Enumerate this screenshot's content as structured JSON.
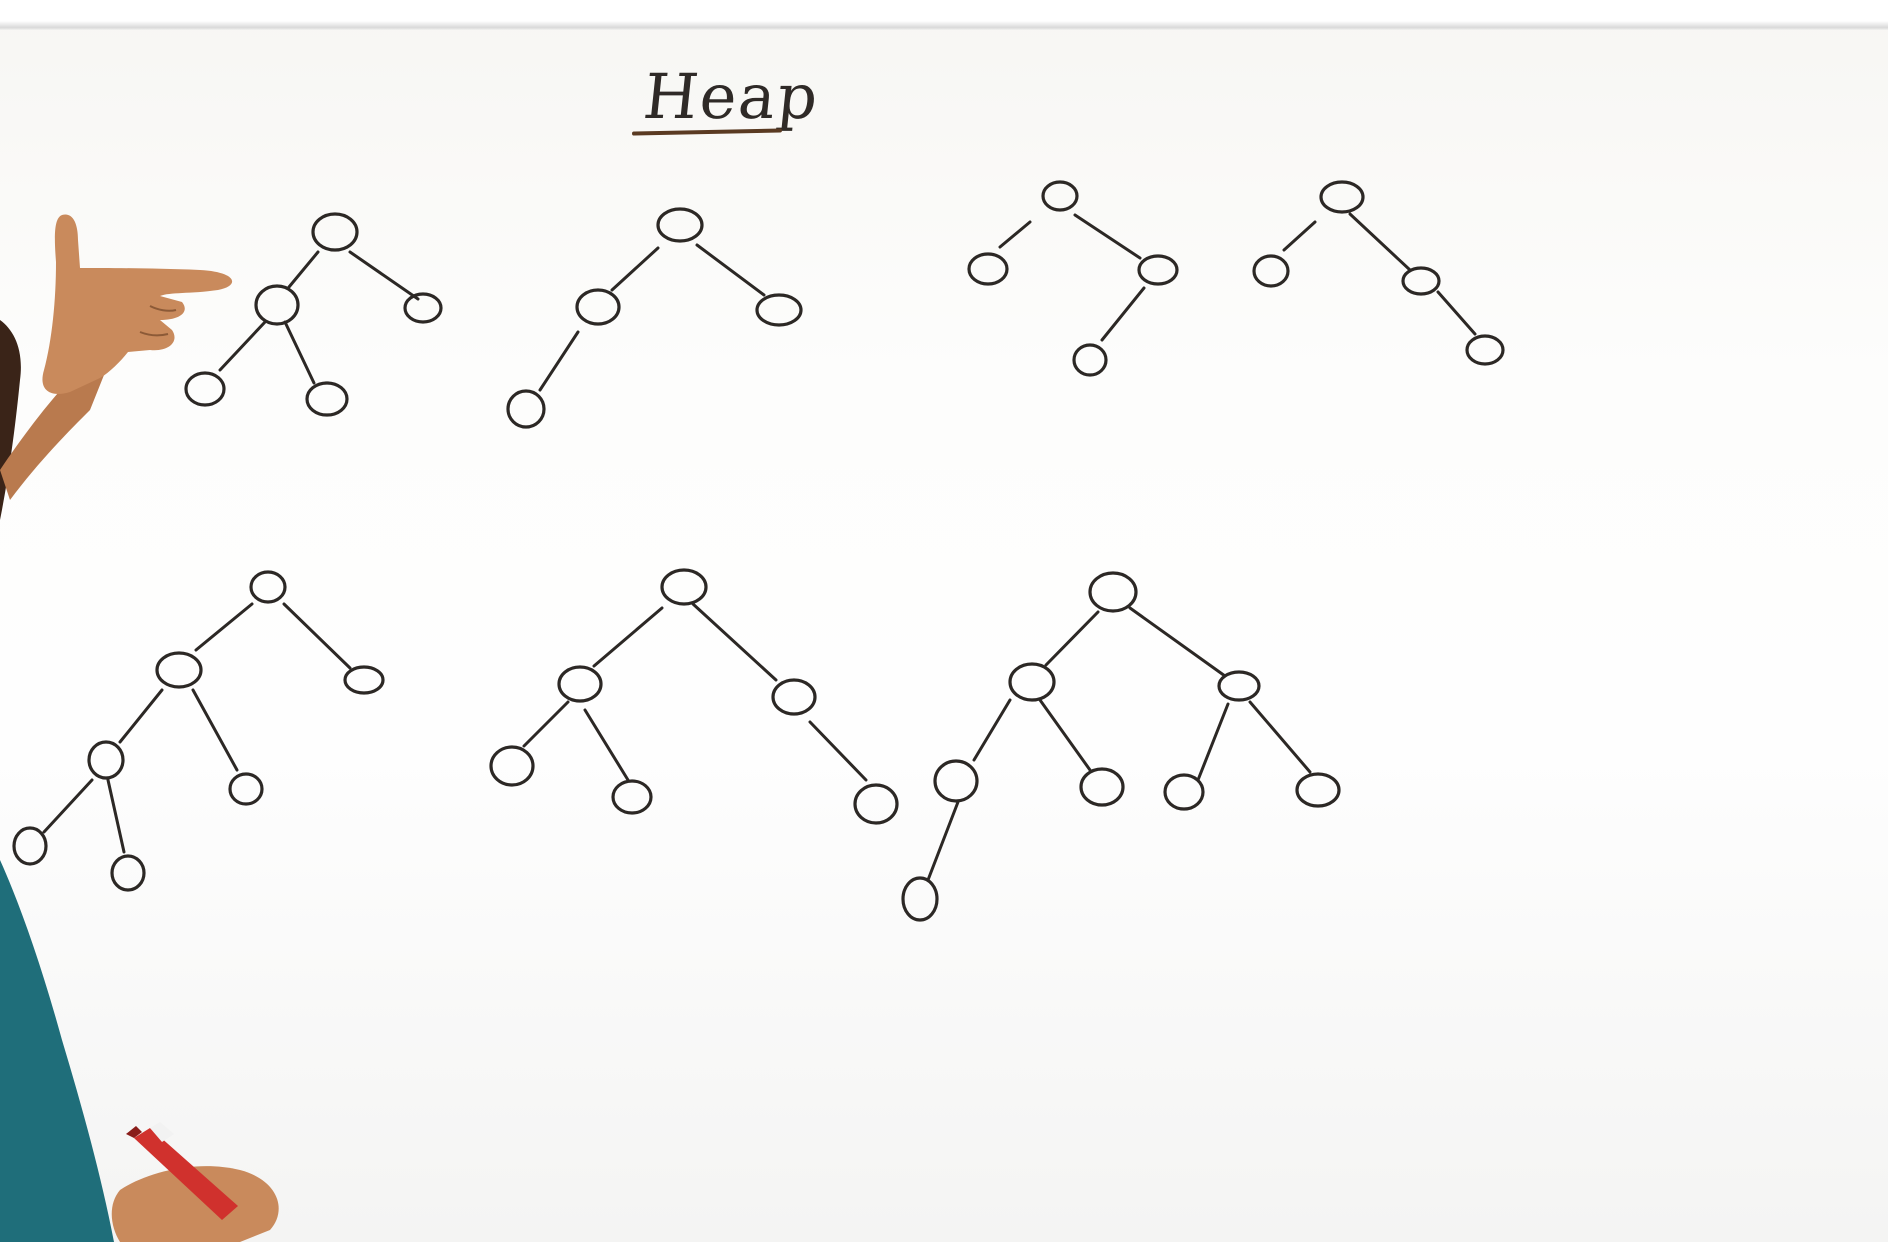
{
  "board": {
    "title": "Heap",
    "ink_color": "#2c2825",
    "title_underline_color": "#5a3a22",
    "background_color": "#fdfdfc"
  },
  "trees": [
    {
      "id": "tree-1",
      "nodes": 5,
      "shape": "complete"
    },
    {
      "id": "tree-2",
      "nodes": 4,
      "shape": "left-chain"
    },
    {
      "id": "tree-3",
      "nodes": 4,
      "shape": "right-left"
    },
    {
      "id": "tree-4",
      "nodes": 4,
      "shape": "right-chain"
    },
    {
      "id": "tree-5",
      "nodes": 7,
      "shape": "left-heavy"
    },
    {
      "id": "tree-6",
      "nodes": 6,
      "shape": "partial"
    },
    {
      "id": "tree-7",
      "nodes": 8,
      "shape": "complete"
    }
  ],
  "presenter": {
    "shirt_color": "#1f6e7a",
    "skin_color": "#c98a5c",
    "marker_color": "#d0312d"
  }
}
